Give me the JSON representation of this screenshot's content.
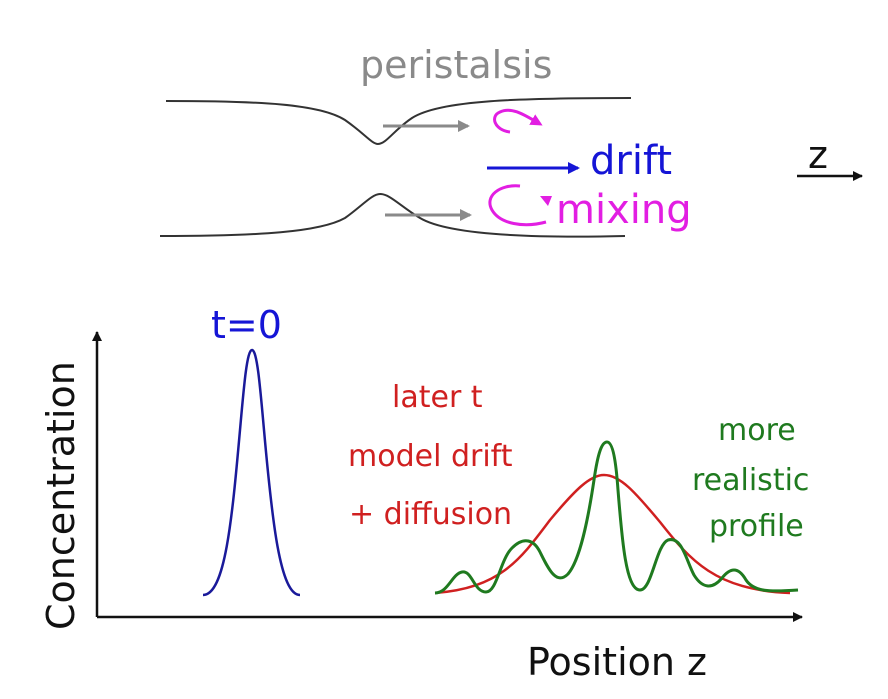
{
  "labels": {
    "peristalsis": "peristalsis",
    "drift": "drift",
    "mixing": "mixing",
    "z_axis": "z",
    "t0": "t=0",
    "later_t": "later t",
    "model_drift": "model drift",
    "plus_diffusion": "+ diffusion",
    "more": "more",
    "realistic": "realistic",
    "profile": "profile",
    "y_axis": "Concentration",
    "x_axis": "Position z"
  },
  "colors": {
    "peristalsis": "#8a8a8a",
    "drift": "#1515d6",
    "mixing": "#e21ee2",
    "t0_curve": "#1a1a9a",
    "model_curve": "#d02020",
    "realistic_curve": "#1f7a1f",
    "axis": "#111111"
  }
}
